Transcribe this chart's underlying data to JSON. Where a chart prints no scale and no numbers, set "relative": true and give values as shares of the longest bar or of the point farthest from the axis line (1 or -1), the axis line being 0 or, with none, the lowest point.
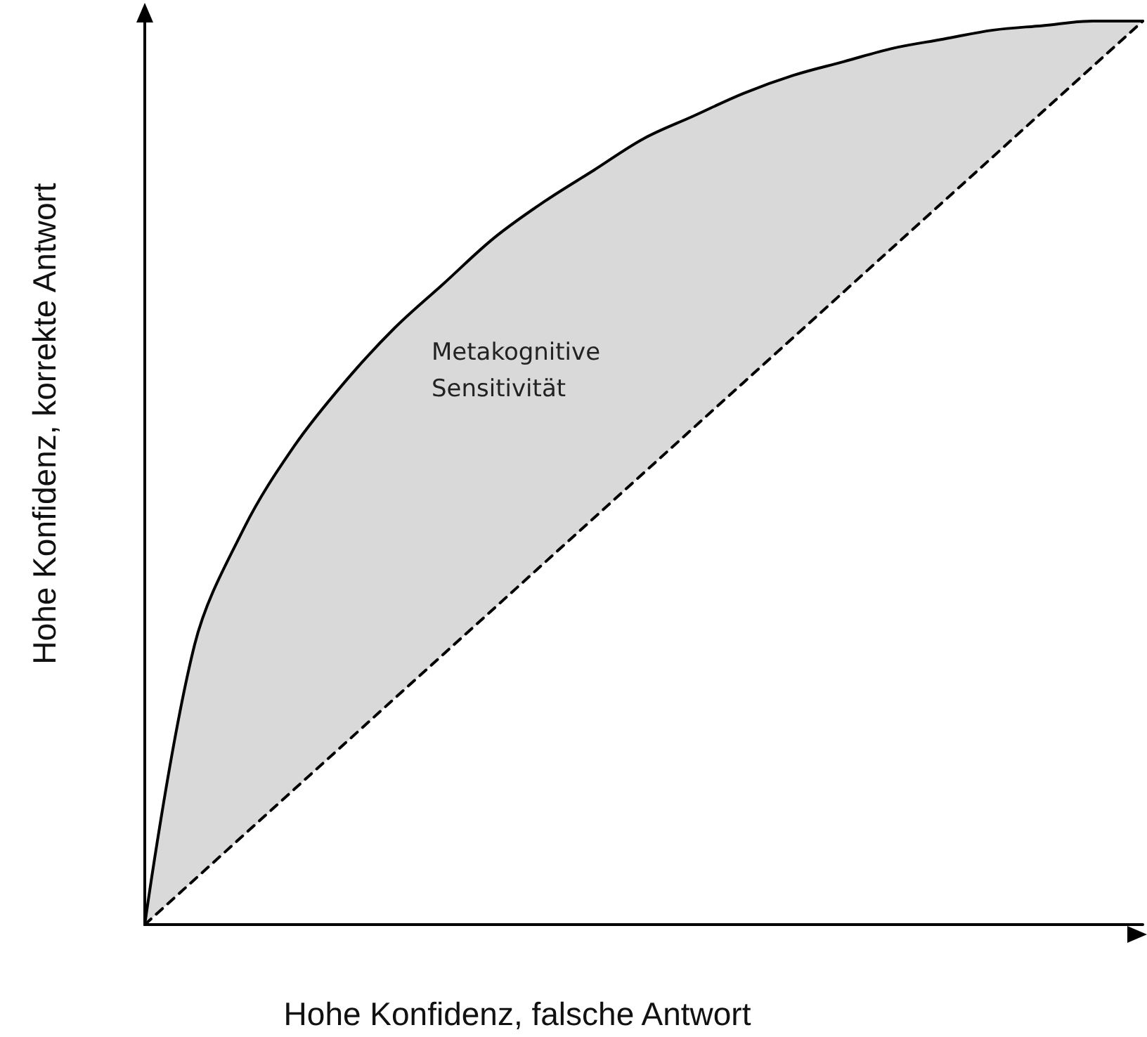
{
  "chart_data": {
    "type": "line",
    "relative": true,
    "xlabel": "Hohe Konfidenz, falsche Antwort",
    "ylabel": "Hohe Konfidenz, korrekte Antwort",
    "annotations": [
      "Metakognitive\nSensitivität"
    ],
    "categories": [
      null,
      null,
      null,
      null,
      null,
      null,
      null,
      null,
      null,
      null,
      null,
      null,
      null,
      null,
      null,
      null,
      null,
      null,
      null,
      null,
      null
    ],
    "series": [
      {
        "color": "#000000",
        "line_style": "solid",
        "values": [
          0,
          0.31,
          0.44,
          0.53,
          0.6,
          0.66,
          0.71,
          0.76,
          0.8,
          0.835,
          0.87,
          0.895,
          0.92,
          0.94,
          0.955,
          0.97,
          0.98,
          0.99,
          0.995,
          1,
          1
        ]
      },
      {
        "color": "#000000",
        "line_style": "dashed",
        "values": [
          0,
          0.05,
          0.1,
          0.15,
          0.2,
          0.25,
          0.3,
          0.35,
          0.4,
          0.45,
          0.5,
          0.55,
          0.6,
          0.65,
          0.7,
          0.75,
          0.8,
          0.85,
          0.9,
          0.95,
          1
        ]
      }
    ],
    "grid": false,
    "marker": "none"
  }
}
